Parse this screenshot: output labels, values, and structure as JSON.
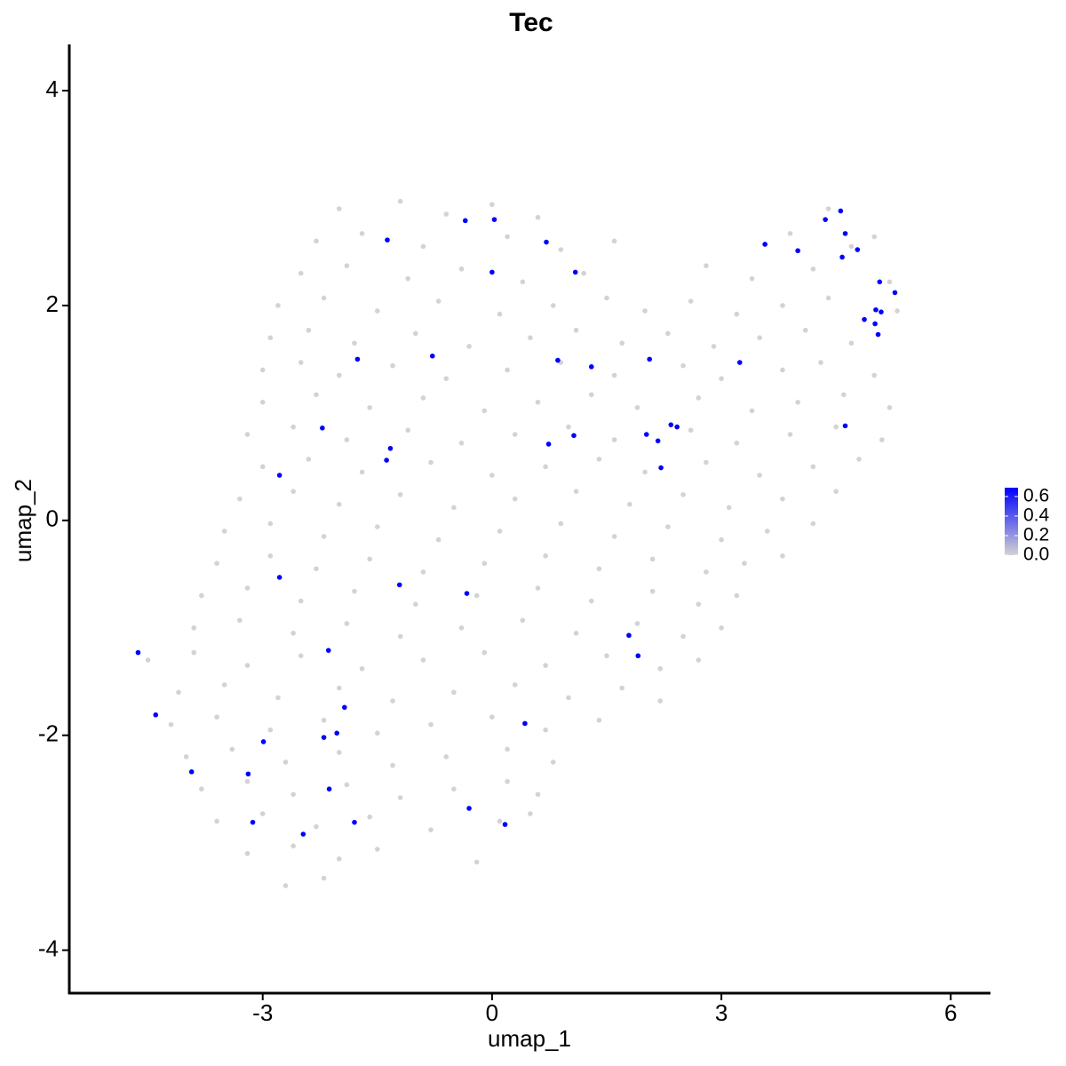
{
  "chart_data": {
    "type": "scatter",
    "title": "Tec",
    "x_label": "umap_1",
    "y_label": "umap_2",
    "xlim": [
      -5.53,
      6.52
    ],
    "xticks": [
      -3,
      0,
      3,
      6
    ],
    "ylim": [
      -4.4,
      4.43
    ],
    "yticks": [
      -4,
      -2,
      0,
      2,
      4
    ],
    "colorbar": {
      "lim": [
        0,
        0.69
      ],
      "low_color": "#d3d3d3",
      "high_color": "#0000ff",
      "ticks": [
        {
          "value": 0,
          "label": "0.0"
        },
        {
          "value": 0.2,
          "label": "0.2"
        },
        {
          "value": 0.4,
          "label": "0.4"
        },
        {
          "value": 0.6,
          "label": "0.6"
        }
      ]
    },
    "x": [
      -2.0,
      -1.2,
      -0.6,
      0.0,
      0.6,
      4.4,
      -2.3,
      -1.7,
      -0.9,
      0.2,
      0.9,
      1.6,
      3.9,
      4.7,
      5.0,
      -2.5,
      -1.9,
      -1.1,
      -0.4,
      0.4,
      1.2,
      2.8,
      3.4,
      4.2,
      5.2,
      -2.8,
      -2.2,
      -1.5,
      -0.7,
      0.1,
      0.8,
      1.5,
      2.0,
      2.6,
      3.2,
      3.8,
      4.4,
      5.3,
      -2.9,
      -2.4,
      -1.8,
      -1.0,
      -0.3,
      0.5,
      1.1,
      1.7,
      2.3,
      2.9,
      3.5,
      4.1,
      4.7,
      -3.0,
      -2.5,
      -2.0,
      -1.3,
      -0.6,
      0.2,
      0.9,
      1.6,
      2.5,
      3.0,
      3.8,
      4.3,
      5.0,
      -3.0,
      -2.3,
      -1.6,
      -0.9,
      -0.1,
      0.6,
      1.3,
      1.9,
      2.7,
      3.4,
      4.0,
      4.6,
      5.2,
      -3.2,
      -2.6,
      -1.9,
      -1.1,
      -0.4,
      0.3,
      1.0,
      1.6,
      2.6,
      3.2,
      3.9,
      4.5,
      5.1,
      -3.0,
      -2.4,
      -1.7,
      -0.8,
      0.0,
      0.7,
      1.4,
      2.0,
      2.8,
      3.5,
      4.2,
      4.8,
      -3.3,
      -2.6,
      -2.0,
      -1.2,
      -0.5,
      0.3,
      1.1,
      1.8,
      2.5,
      3.1,
      3.8,
      4.5,
      -3.5,
      -2.9,
      -2.2,
      -1.5,
      -0.7,
      0.1,
      0.9,
      1.6,
      2.3,
      3.0,
      3.6,
      4.2,
      -3.6,
      -2.9,
      -2.3,
      -1.6,
      -0.9,
      -0.1,
      0.7,
      1.4,
      2.1,
      2.8,
      3.3,
      3.8,
      -3.8,
      -3.2,
      -2.5,
      -1.8,
      -1.0,
      -0.2,
      0.6,
      1.3,
      2.1,
      2.7,
      3.2,
      -3.9,
      -3.3,
      -2.6,
      -1.9,
      -1.2,
      -0.4,
      0.4,
      1.1,
      1.9,
      2.5,
      3.0,
      -4.5,
      -3.9,
      -3.2,
      -2.5,
      -1.7,
      -0.9,
      -0.1,
      0.7,
      1.5,
      2.2,
      2.7,
      -4.1,
      -3.5,
      -2.8,
      -2.0,
      -1.3,
      -0.5,
      0.3,
      1.0,
      1.7,
      2.2,
      -4.2,
      -3.6,
      -2.9,
      -2.2,
      -1.5,
      -0.8,
      0.0,
      0.7,
      1.4,
      -4.0,
      -3.4,
      -2.7,
      -2.0,
      -1.3,
      -0.6,
      0.2,
      0.8,
      -3.8,
      -3.2,
      -2.6,
      -1.9,
      -1.2,
      -0.5,
      0.2,
      0.6,
      -3.6,
      -3.0,
      -2.3,
      -1.6,
      -0.8,
      0.1,
      0.5,
      -3.2,
      -2.6,
      -2.0,
      -1.5,
      -0.2,
      -2.7,
      -2.2,
      -4.63,
      -4.4,
      -3.93,
      -3.19,
      -3.13,
      -2.99,
      -2.78,
      -2.78,
      -2.47,
      -2.22,
      -2.2,
      -2.14,
      -2.13,
      -2.03,
      -1.93,
      -1.8,
      -1.76,
      -1.37,
      -1.38,
      -1.33,
      -1.21,
      -0.78,
      -0.35,
      -0.33,
      -0.3,
      0.0,
      0.03,
      0.17,
      0.43,
      0.71,
      0.74,
      0.86,
      1.07,
      1.09,
      1.3,
      1.79,
      1.91,
      2.02,
      2.06,
      2.17,
      2.21,
      2.34,
      2.42,
      3.24,
      3.57,
      4.0,
      4.36,
      4.56,
      4.62,
      4.58,
      4.62,
      4.78,
      4.87,
      5.01,
      5.02,
      5.05,
      5.07,
      5.09,
      5.27
    ],
    "y": [
      2.9,
      2.97,
      2.85,
      2.94,
      2.82,
      2.9,
      2.6,
      2.67,
      2.55,
      2.64,
      2.52,
      2.6,
      2.67,
      2.55,
      2.64,
      2.3,
      2.37,
      2.25,
      2.34,
      2.22,
      2.3,
      2.37,
      2.25,
      2.34,
      2.22,
      2.0,
      2.07,
      1.95,
      2.04,
      1.92,
      2.0,
      2.07,
      1.95,
      2.04,
      1.92,
      2.0,
      2.07,
      1.95,
      1.7,
      1.77,
      1.65,
      1.74,
      1.62,
      1.7,
      1.77,
      1.65,
      1.74,
      1.62,
      1.7,
      1.77,
      1.65,
      1.4,
      1.47,
      1.35,
      1.44,
      1.32,
      1.4,
      1.47,
      1.35,
      1.44,
      1.32,
      1.4,
      1.47,
      1.35,
      1.1,
      1.17,
      1.05,
      1.14,
      1.02,
      1.1,
      1.17,
      1.05,
      1.14,
      1.02,
      1.1,
      1.17,
      1.05,
      0.8,
      0.87,
      0.75,
      0.84,
      0.72,
      0.8,
      0.87,
      0.75,
      0.84,
      0.72,
      0.8,
      0.87,
      0.75,
      0.5,
      0.57,
      0.45,
      0.54,
      0.42,
      0.5,
      0.57,
      0.45,
      0.54,
      0.42,
      0.5,
      0.57,
      0.2,
      0.27,
      0.15,
      0.24,
      0.12,
      0.2,
      0.27,
      0.15,
      0.24,
      0.12,
      0.2,
      0.27,
      -0.1,
      -0.03,
      -0.15,
      -0.06,
      -0.18,
      -0.1,
      -0.03,
      -0.15,
      -0.06,
      -0.18,
      -0.1,
      -0.03,
      -0.4,
      -0.33,
      -0.45,
      -0.36,
      -0.48,
      -0.4,
      -0.33,
      -0.45,
      -0.36,
      -0.48,
      -0.4,
      -0.33,
      -0.7,
      -0.63,
      -0.75,
      -0.66,
      -0.78,
      -0.7,
      -0.63,
      -0.75,
      -0.66,
      -0.78,
      -0.7,
      -1.0,
      -0.93,
      -1.05,
      -0.96,
      -1.08,
      -1.0,
      -0.93,
      -1.05,
      -0.96,
      -1.08,
      -1.0,
      -1.3,
      -1.23,
      -1.35,
      -1.26,
      -1.38,
      -1.3,
      -1.23,
      -1.35,
      -1.26,
      -1.38,
      -1.3,
      -1.6,
      -1.53,
      -1.65,
      -1.56,
      -1.68,
      -1.6,
      -1.53,
      -1.65,
      -1.56,
      -1.68,
      -1.9,
      -1.83,
      -1.95,
      -1.86,
      -1.98,
      -1.9,
      -1.83,
      -1.95,
      -1.86,
      -2.2,
      -2.13,
      -2.25,
      -2.16,
      -2.28,
      -2.2,
      -2.13,
      -2.25,
      -2.5,
      -2.43,
      -2.55,
      -2.46,
      -2.58,
      -2.5,
      -2.43,
      -2.55,
      -2.8,
      -2.73,
      -2.85,
      -2.76,
      -2.88,
      -2.8,
      -2.73,
      -3.1,
      -3.03,
      -3.15,
      -3.06,
      -3.18,
      -3.4,
      -3.33,
      -1.23,
      -1.81,
      -2.34,
      -2.36,
      -2.81,
      -2.06,
      0.42,
      -0.53,
      -2.92,
      0.86,
      -2.02,
      -1.21,
      -2.5,
      -1.98,
      -1.74,
      -2.81,
      1.5,
      2.61,
      0.56,
      0.67,
      -0.6,
      1.53,
      2.79,
      -0.68,
      -2.68,
      2.31,
      2.8,
      -2.83,
      -1.89,
      2.59,
      0.71,
      1.49,
      0.79,
      2.31,
      1.43,
      -1.07,
      -1.26,
      0.8,
      1.5,
      0.74,
      0.49,
      0.89,
      0.87,
      1.47,
      2.57,
      2.51,
      2.8,
      2.88,
      2.67,
      2.45,
      0.88,
      2.52,
      1.87,
      1.83,
      1.96,
      1.73,
      2.22,
      1.94,
      2.12
    ],
    "values": [
      0,
      0,
      0,
      0,
      0,
      0,
      0,
      0,
      0,
      0,
      0,
      0,
      0,
      0,
      0,
      0,
      0,
      0,
      0,
      0,
      0,
      0,
      0,
      0,
      0,
      0,
      0,
      0,
      0,
      0,
      0,
      0,
      0,
      0,
      0,
      0,
      0,
      0,
      0,
      0,
      0,
      0,
      0,
      0,
      0,
      0,
      0,
      0,
      0,
      0,
      0,
      0,
      0,
      0,
      0,
      0,
      0,
      0,
      0,
      0,
      0,
      0,
      0,
      0,
      0,
      0,
      0,
      0,
      0,
      0,
      0,
      0,
      0,
      0,
      0,
      0,
      0,
      0,
      0,
      0,
      0,
      0,
      0,
      0,
      0,
      0,
      0,
      0,
      0,
      0,
      0,
      0,
      0,
      0,
      0,
      0,
      0,
      0,
      0,
      0,
      0,
      0,
      0,
      0,
      0,
      0,
      0,
      0,
      0,
      0,
      0,
      0,
      0,
      0,
      0,
      0,
      0,
      0,
      0,
      0,
      0,
      0,
      0,
      0,
      0,
      0,
      0,
      0,
      0,
      0,
      0,
      0,
      0,
      0,
      0,
      0,
      0,
      0,
      0,
      0,
      0,
      0,
      0,
      0,
      0,
      0,
      0,
      0,
      0,
      0,
      0,
      0,
      0,
      0,
      0,
      0,
      0,
      0,
      0,
      0,
      0,
      0,
      0,
      0,
      0,
      0,
      0,
      0,
      0,
      0,
      0,
      0,
      0,
      0,
      0,
      0,
      0,
      0,
      0,
      0,
      0,
      0,
      0,
      0,
      0,
      0,
      0,
      0,
      0,
      0,
      0,
      0,
      0,
      0,
      0,
      0,
      0,
      0,
      0,
      0,
      0,
      0,
      0,
      0,
      0,
      0,
      0,
      0,
      0,
      0,
      0,
      0,
      0,
      0,
      0,
      0,
      0,
      0,
      0,
      0,
      0.69,
      0.69,
      0.69,
      0.69,
      0.69,
      0.69,
      0.69,
      0.69,
      0.69,
      0.69,
      0.69,
      0.69,
      0.69,
      0.69,
      0.69,
      0.69,
      0.69,
      0.69,
      0.69,
      0.69,
      0.69,
      0.69,
      0.69,
      0.69,
      0.69,
      0.69,
      0.69,
      0.69,
      0.69,
      0.69,
      0.69,
      0.69,
      0.69,
      0.69,
      0.69,
      0.69,
      0.69,
      0.69,
      0.69,
      0.69,
      0.69,
      0.69,
      0.69,
      0.69,
      0.69,
      0.69,
      0.69,
      0.69,
      0.69,
      0.69,
      0.69,
      0.69,
      0.69,
      0.69,
      0.69,
      0.69,
      0.69,
      0.69,
      0.69
    ]
  }
}
